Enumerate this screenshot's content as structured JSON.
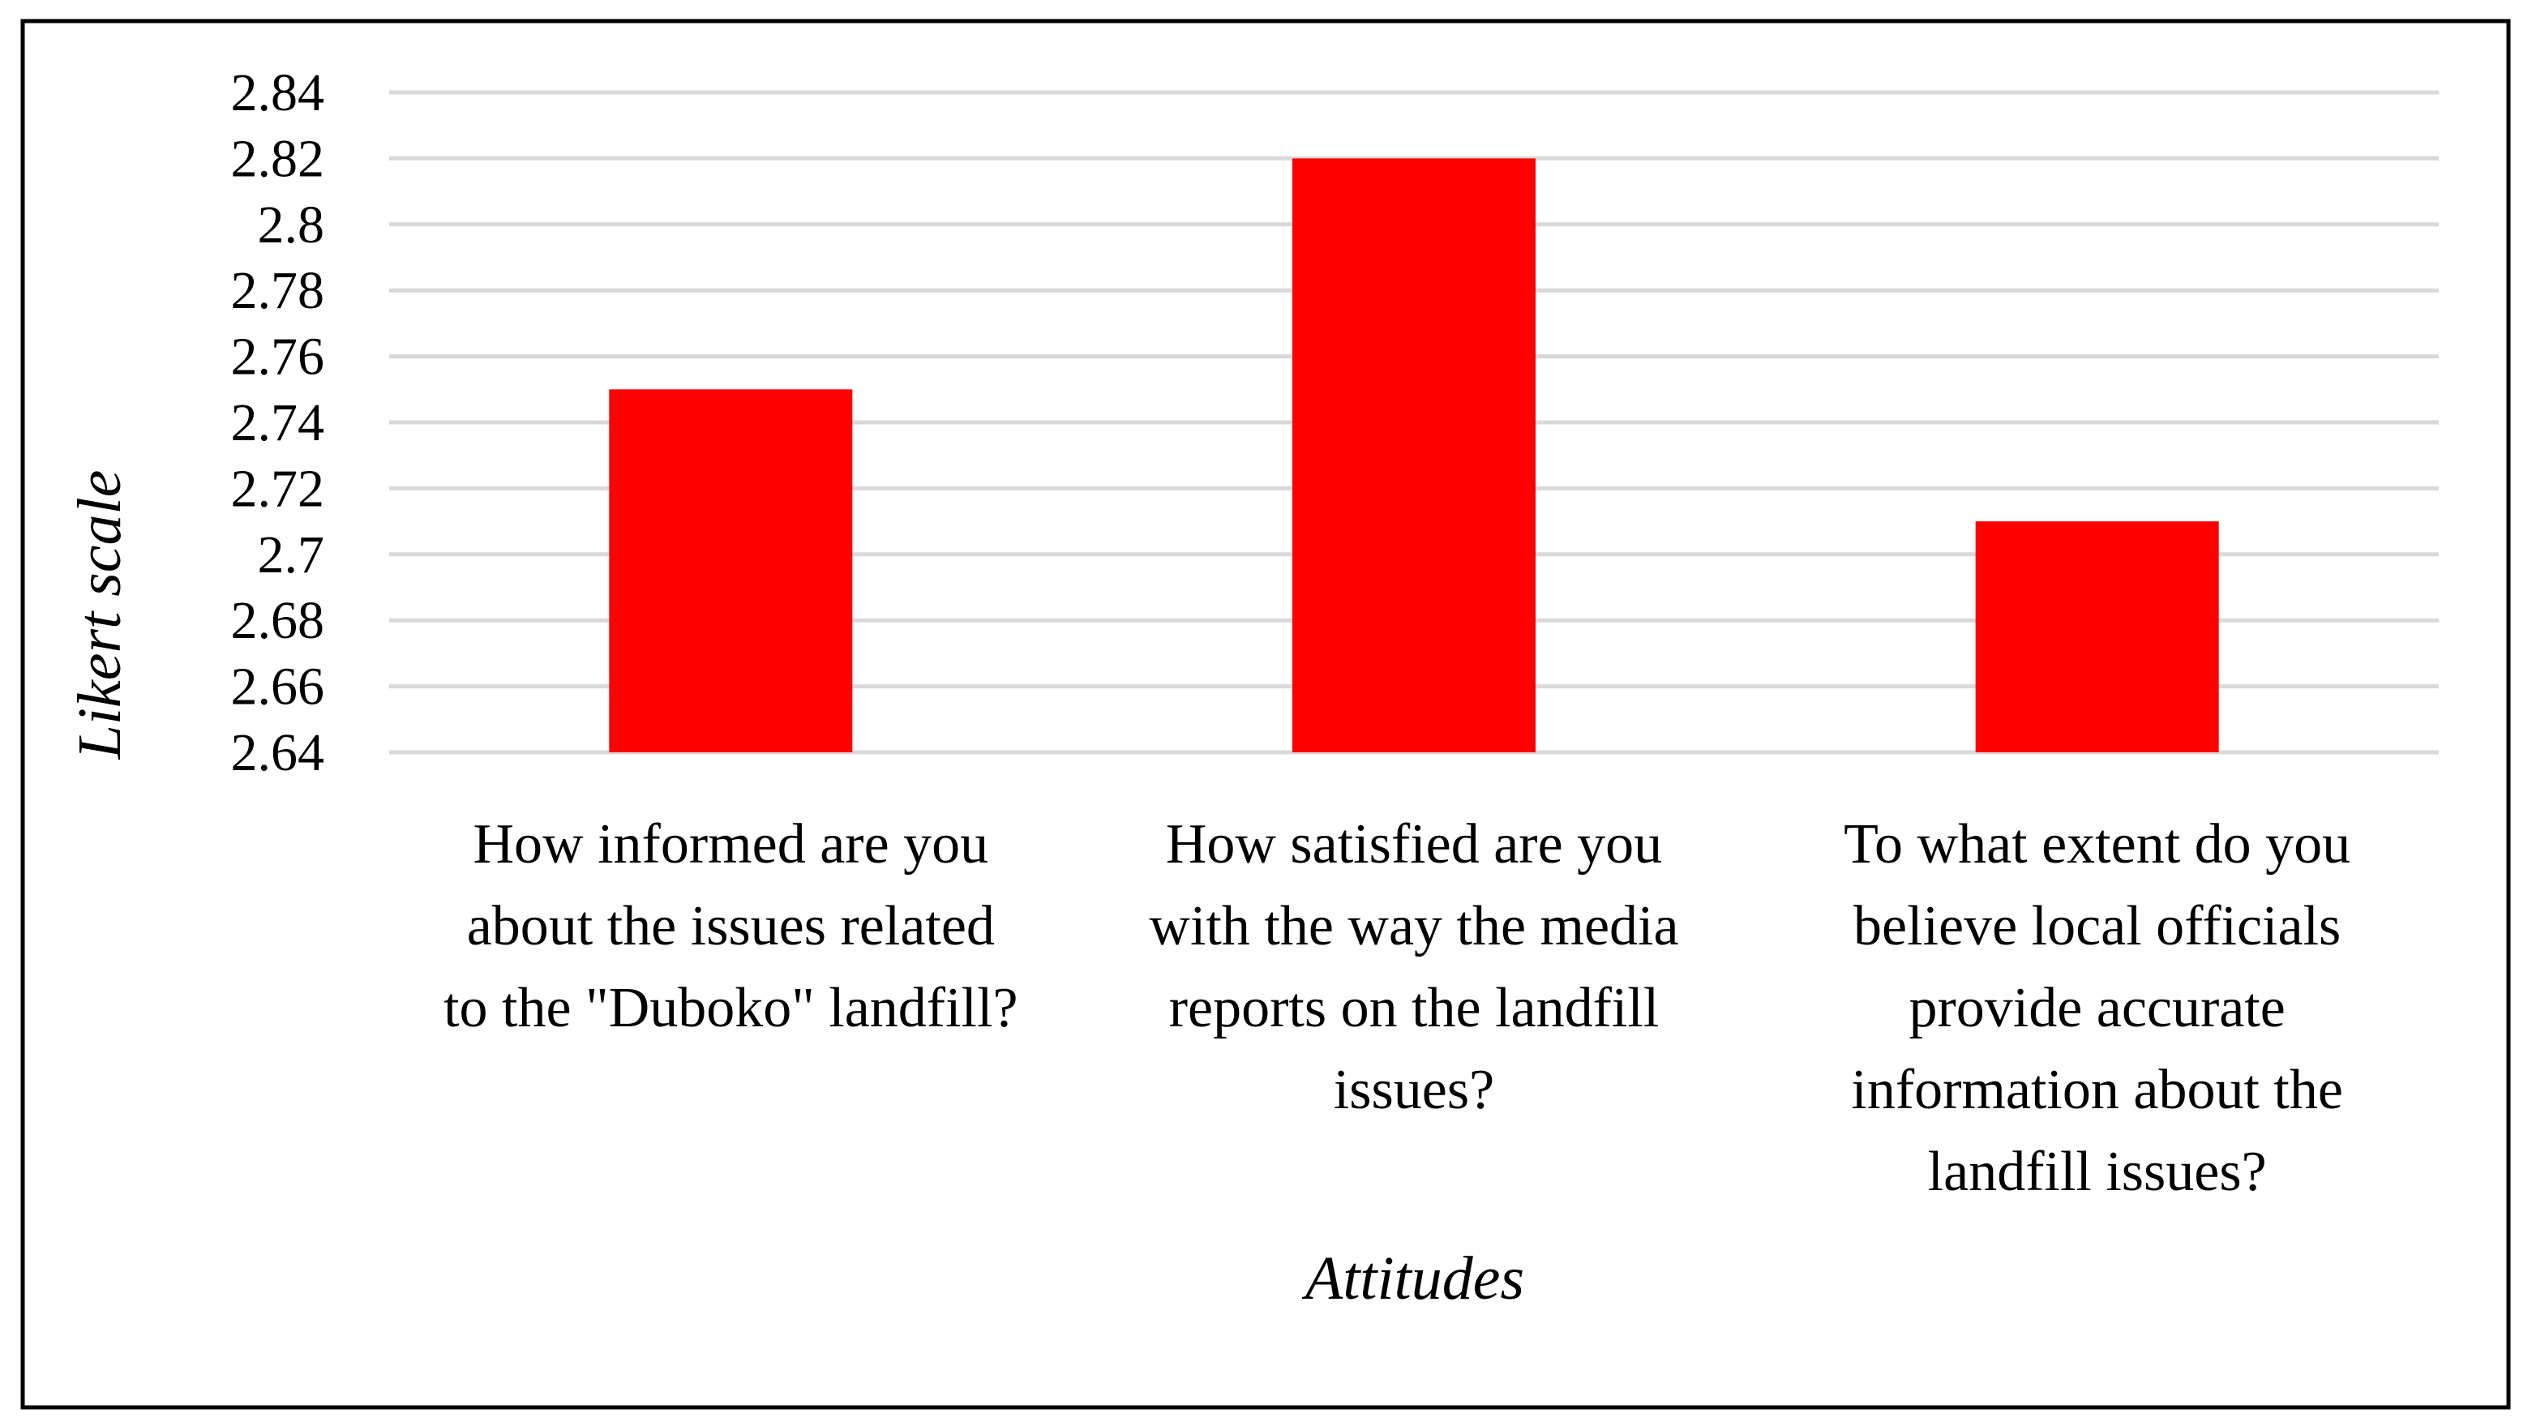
{
  "chart_data": {
    "type": "bar",
    "title": "",
    "categories": [
      [
        "How informed are you",
        "about the issues related",
        "to the \"Duboko\" landfill?"
      ],
      [
        "How satisfied are you",
        "with the way the media",
        "reports on the landfill",
        "issues?"
      ],
      [
        "To what extent do you",
        "believe local officials",
        "provide accurate",
        "information about the",
        "landfill issues?"
      ]
    ],
    "values": [
      2.75,
      2.82,
      2.71
    ],
    "xlabel": "Attitudes",
    "ylabel": "Likert scale",
    "ylim": [
      2.64,
      2.84
    ],
    "yticks": [
      "2.64",
      "2.66",
      "2.68",
      "2.7",
      "2.72",
      "2.74",
      "2.76",
      "2.78",
      "2.8",
      "2.82",
      "2.84"
    ],
    "ytick_values": [
      2.64,
      2.66,
      2.68,
      2.7,
      2.72,
      2.74,
      2.76,
      2.78,
      2.8,
      2.82,
      2.84
    ],
    "grid": true,
    "legend": "none",
    "colors": {
      "bar": "#ff0000",
      "grid": "#d9d9d9",
      "frame": "#000000",
      "text": "#000000"
    }
  }
}
